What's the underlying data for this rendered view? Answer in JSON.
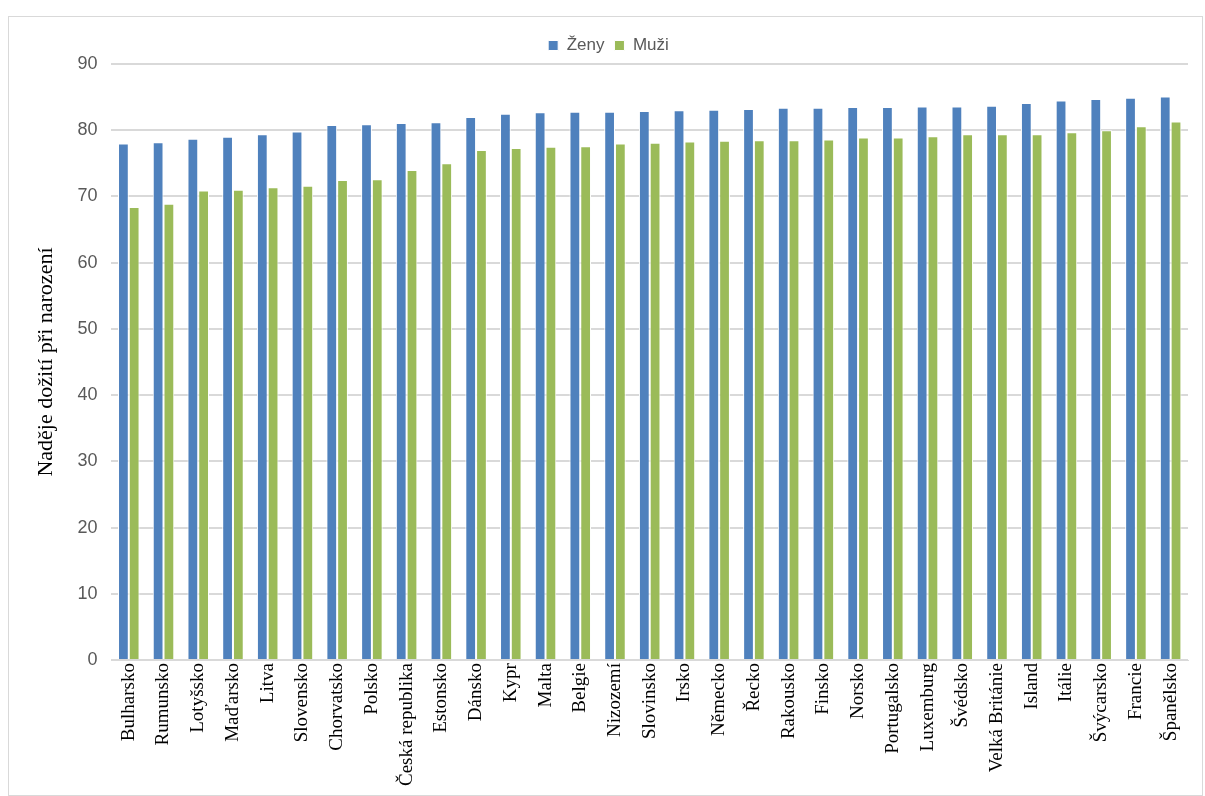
{
  "chart_data": {
    "type": "bar",
    "ylabel": "Naděje dožití při narození",
    "categories": [
      "Bulharsko",
      "Rumunsko",
      "Lotyšsko",
      "Maďarsko",
      "Litva",
      "Slovensko",
      "Chorvatsko",
      "Polsko",
      "Česká republika",
      "Estonsko",
      "Dánsko",
      "Kypr",
      "Malta",
      "Belgie",
      "Nizozemí",
      "Slovinsko",
      "Irsko",
      "Německo",
      "Řecko",
      "Rakousko",
      "Finsko",
      "Norsko",
      "Portugalsko",
      "Luxemburg",
      "Švédsko",
      "Velká Británie",
      "Island",
      "Itálie",
      "Švýcarsko",
      "Francie",
      "Španělsko"
    ],
    "series": [
      {
        "name": "Ženy",
        "color": "#4f81bd",
        "values": [
          78.0,
          78.2,
          78.7,
          79.0,
          79.4,
          79.8,
          80.8,
          80.9,
          81.1,
          81.2,
          82.0,
          82.5,
          82.7,
          82.8,
          82.8,
          82.9,
          83.0,
          83.1,
          83.2,
          83.4,
          83.4,
          83.5,
          83.5,
          83.6,
          83.6,
          83.7,
          84.1,
          84.5,
          84.7,
          84.9,
          85.1
        ]
      },
      {
        "name": "Muži",
        "color": "#9bbb59",
        "values": [
          68.4,
          68.9,
          70.9,
          71.0,
          71.4,
          71.6,
          72.5,
          72.6,
          74.0,
          75.0,
          77.0,
          77.3,
          77.5,
          77.6,
          78.0,
          78.1,
          78.3,
          78.4,
          78.5,
          78.5,
          78.6,
          78.9,
          78.9,
          79.1,
          79.4,
          79.4,
          79.4,
          79.7,
          80.0,
          80.6,
          81.3
        ]
      }
    ],
    "ylim": [
      0,
      90
    ],
    "yticks": [
      0,
      10,
      20,
      30,
      40,
      50,
      60,
      70,
      80,
      90
    ],
    "grid": "y",
    "legend": "top"
  }
}
